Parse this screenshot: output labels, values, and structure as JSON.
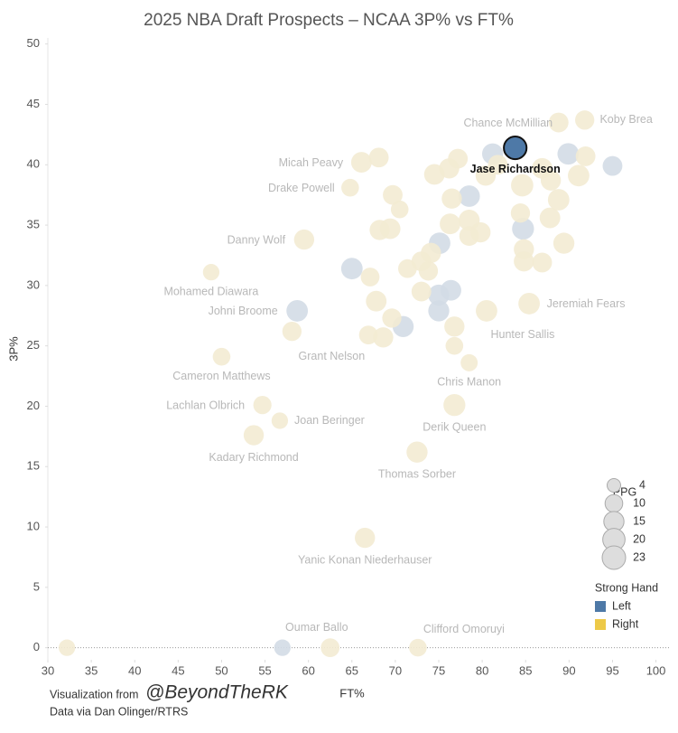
{
  "chart_data": {
    "type": "scatter",
    "title": "2025 NBA Draft Prospects – NCAA 3P% vs FT%",
    "xlabel": "FT%",
    "ylabel": "3P%",
    "xlim": [
      30,
      101.5
    ],
    "ylim": [
      -1,
      50.5
    ],
    "xticks": [
      30,
      35,
      40,
      45,
      50,
      55,
      60,
      65,
      70,
      75,
      80,
      85,
      90,
      95,
      100
    ],
    "yticks": [
      0,
      5,
      10,
      15,
      20,
      25,
      30,
      35,
      40,
      45,
      50
    ],
    "grid": false,
    "highlighted": "Jase Richardson",
    "size_legend": {
      "title": "PPG",
      "values": [
        4,
        10,
        15,
        20,
        23
      ]
    },
    "legend_title": "Strong Hand",
    "series": [
      {
        "name": "Left",
        "color": "#4e79a7",
        "labels": [
          "Jase Richardson",
          "Johni Broome",
          "Oumar Ballo",
          null,
          null,
          null,
          null,
          null,
          null,
          null,
          null,
          null,
          null,
          null
        ],
        "x": [
          83.8,
          58.7,
          57.0,
          65.0,
          70.9,
          75.0,
          75.0,
          76.4,
          75.1,
          78.5,
          84.7,
          81.2,
          89.9,
          95.0
        ],
        "values": [
          41.4,
          27.9,
          0,
          31.4,
          26.6,
          27.9,
          29.2,
          29.6,
          33.5,
          37.4,
          34.7,
          40.9,
          40.9,
          39.9
        ],
        "sizes": [
          21,
          18,
          8,
          18,
          17,
          17,
          17,
          16,
          18,
          18,
          19,
          17,
          18,
          14
        ]
      },
      {
        "name": "Right",
        "color": "#edc948",
        "labels": [
          "Koby Brea",
          "Chance McMillian",
          "Micah Peavy",
          "Drake Powell",
          "Danny Wolf",
          "Mohamed Diawara",
          "Cameron Matthews",
          "Grant Nelson",
          "Lachlan Olbrich",
          "Joan Beringer",
          "Kadary Richmond",
          "Thomas Sorber",
          "Derik Queen",
          "Chris Manon",
          "Hunter Sallis",
          "Jeremiah Fears",
          "Yanic Konan Niederhauser",
          "Clifford Omoruyi",
          null,
          null,
          null,
          null,
          null,
          null,
          null,
          null,
          null,
          null,
          null,
          null,
          null,
          null,
          null,
          null,
          null,
          null,
          null,
          null,
          null,
          null,
          null,
          null,
          null,
          null,
          null,
          null,
          null,
          null,
          null,
          null,
          null,
          null,
          null,
          null,
          null,
          null,
          null,
          null,
          null
        ],
        "x": [
          91.8,
          88.8,
          66.1,
          64.8,
          59.5,
          48.8,
          50.0,
          58.1,
          54.7,
          56.7,
          53.7,
          72.5,
          76.8,
          78.5,
          80.5,
          85.4,
          66.5,
          72.6,
          32.2,
          62.5,
          68.1,
          69.7,
          70.5,
          68.2,
          69.4,
          67.1,
          67.8,
          69.6,
          66.9,
          68.6,
          71.4,
          73.0,
          74.1,
          73.0,
          73.8,
          74.5,
          76.2,
          77.2,
          76.5,
          76.3,
          78.5,
          78.5,
          79.8,
          76.8,
          76.8,
          80.4,
          81.8,
          84.6,
          86.9,
          87.9,
          84.4,
          84.8,
          84.8,
          86.9,
          87.8,
          88.8,
          89.4,
          91.1,
          91.9
        ],
        "values": [
          43.7,
          43.5,
          40.2,
          38.1,
          33.8,
          31.1,
          24.1,
          26.2,
          20.1,
          18.8,
          17.6,
          16.2,
          20.1,
          23.6,
          27.9,
          28.5,
          9.1,
          0,
          0,
          0,
          40.6,
          37.5,
          36.3,
          34.6,
          34.7,
          30.7,
          28.7,
          27.3,
          25.9,
          25.7,
          31.4,
          32.0,
          32.7,
          29.5,
          31.2,
          39.2,
          39.7,
          40.5,
          37.2,
          35.1,
          35.4,
          34.1,
          34.4,
          26.6,
          25.0,
          39.1,
          40.0,
          38.3,
          39.7,
          38.7,
          36.0,
          33.0,
          32.0,
          31.9,
          35.6,
          37.1,
          33.5,
          39.1,
          40.7
        ],
        "sizes": [
          13,
          14,
          16,
          10,
          15,
          8,
          10,
          13,
          11,
          8,
          15,
          17,
          19,
          9,
          18,
          18,
          15,
          10,
          8,
          12,
          14,
          14,
          10,
          15,
          16,
          12,
          16,
          13,
          12,
          15,
          12,
          14,
          15,
          14,
          13,
          16,
          15,
          14,
          15,
          16,
          17,
          14,
          15,
          15,
          10,
          15,
          14,
          20,
          16,
          15,
          13,
          15,
          15,
          14,
          16,
          18,
          17,
          18,
          14
        ]
      }
    ],
    "footer": {
      "prefix": "Visualization from",
      "handle": "@BeyondTheRK",
      "source": "Data via Dan Olinger/RTRS"
    }
  }
}
